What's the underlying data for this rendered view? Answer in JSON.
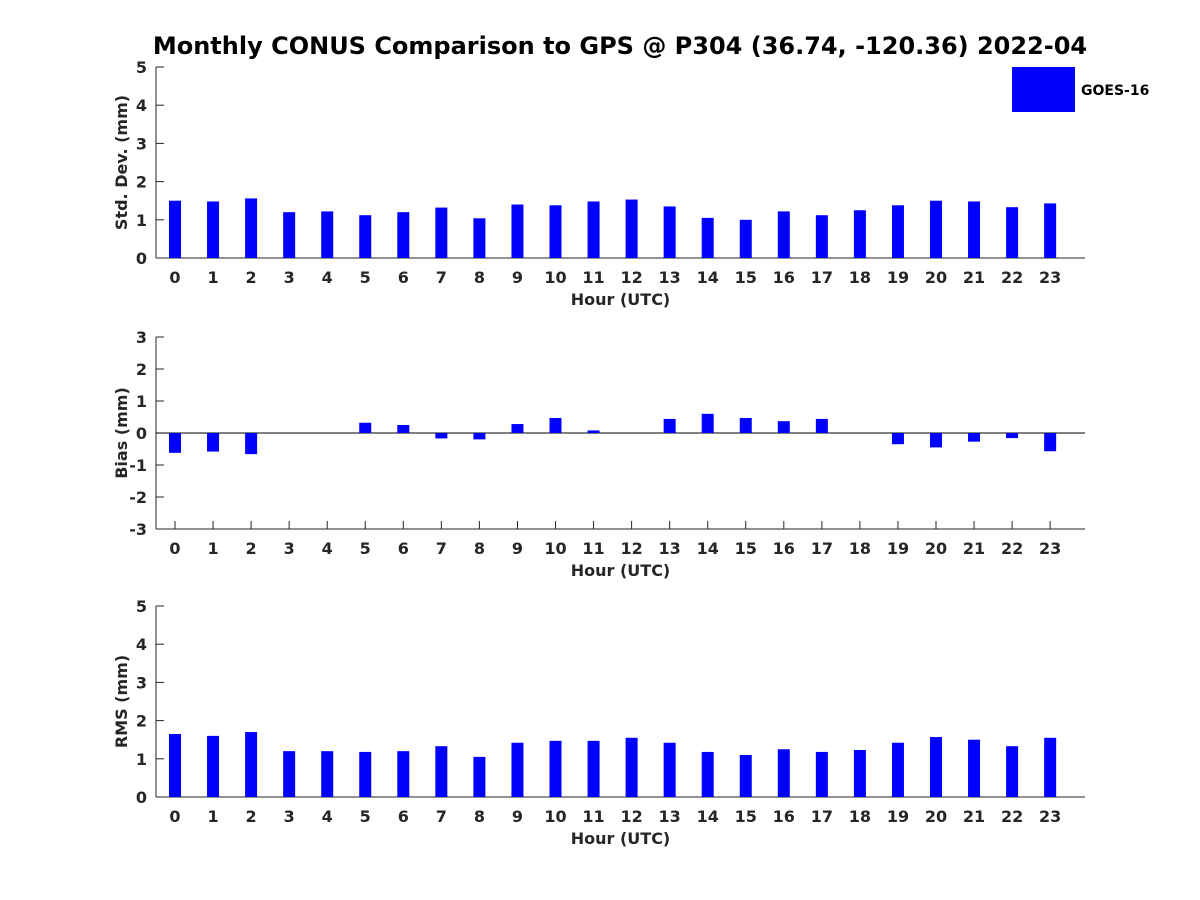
{
  "chart_data": {
    "type": "bar",
    "title": "Monthly CONUS Comparison to GPS @ P304 (36.74, -120.36) 2022-04",
    "legend": {
      "placement": "top-right",
      "entries": [
        "GOES-16"
      ]
    },
    "bar_color": "#0000ff",
    "categories": [
      "0",
      "1",
      "2",
      "3",
      "4",
      "5",
      "6",
      "7",
      "8",
      "9",
      "10",
      "11",
      "12",
      "13",
      "14",
      "15",
      "16",
      "17",
      "18",
      "19",
      "20",
      "21",
      "22",
      "23"
    ],
    "panels": [
      {
        "id": "stddev",
        "ylabel": "Std. Dev. (mm)",
        "xlabel": "Hour (UTC)",
        "ylim": [
          0,
          5
        ],
        "yticks": [
          "0",
          "1",
          "2",
          "3",
          "4",
          "5"
        ],
        "series": [
          {
            "name": "GOES-16",
            "values": [
              1.5,
              1.48,
              1.56,
              1.2,
              1.22,
              1.12,
              1.2,
              1.32,
              1.04,
              1.4,
              1.38,
              1.48,
              1.53,
              1.35,
              1.05,
              1.0,
              1.22,
              1.12,
              1.25,
              1.38,
              1.5,
              1.48,
              1.33,
              1.43
            ]
          }
        ]
      },
      {
        "id": "bias",
        "ylabel": "Bias (mm)",
        "xlabel": "Hour (UTC)",
        "ylim": [
          -3,
          3
        ],
        "yticks": [
          "-3",
          "-2",
          "-1",
          "0",
          "1",
          "2",
          "3"
        ],
        "series": [
          {
            "name": "GOES-16",
            "values": [
              -0.62,
              -0.58,
              -0.66,
              0.0,
              0.0,
              0.32,
              0.25,
              -0.17,
              -0.2,
              0.28,
              0.47,
              0.08,
              0.0,
              0.44,
              0.6,
              0.47,
              0.37,
              0.44,
              0.0,
              -0.35,
              -0.45,
              -0.27,
              -0.16,
              -0.57
            ]
          }
        ]
      },
      {
        "id": "rms",
        "ylabel": "RMS (mm)",
        "xlabel": "Hour (UTC)",
        "ylim": [
          0,
          5
        ],
        "yticks": [
          "0",
          "1",
          "2",
          "3",
          "4",
          "5"
        ],
        "series": [
          {
            "name": "GOES-16",
            "values": [
              1.65,
              1.6,
              1.7,
              1.2,
              1.2,
              1.18,
              1.2,
              1.33,
              1.05,
              1.42,
              1.47,
              1.47,
              1.55,
              1.42,
              1.18,
              1.1,
              1.25,
              1.18,
              1.23,
              1.42,
              1.57,
              1.5,
              1.33,
              1.55
            ]
          }
        ]
      }
    ]
  }
}
